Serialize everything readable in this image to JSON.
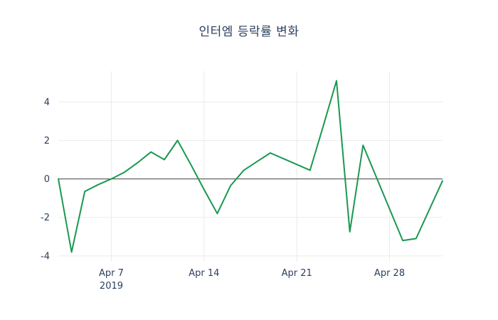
{
  "chart_data": {
    "type": "line",
    "title": "인터엠 등락률 변화",
    "xlabel": "",
    "ylabel": "",
    "series": [
      {
        "name": "등락률",
        "x": [
          "2019-04-03",
          "2019-04-04",
          "2019-04-05",
          "2019-04-06",
          "2019-04-07",
          "2019-04-08",
          "2019-04-09",
          "2019-04-10",
          "2019-04-11",
          "2019-04-12",
          "2019-04-13",
          "2019-04-14",
          "2019-04-15",
          "2019-04-16",
          "2019-04-17",
          "2019-04-18",
          "2019-04-19",
          "2019-04-20",
          "2019-04-21",
          "2019-04-22",
          "2019-04-23",
          "2019-04-24",
          "2019-04-25",
          "2019-04-26",
          "2019-04-27",
          "2019-04-28",
          "2019-04-29",
          "2019-04-30",
          "2019-05-01",
          "2019-05-02"
        ],
        "values": [
          0,
          -3.8,
          -0.65,
          -0.3,
          0,
          0.35,
          0.85,
          1.4,
          1.0,
          2.0,
          0.75,
          -0.55,
          -1.8,
          -0.35,
          0.45,
          0.9,
          1.35,
          1.05,
          0.75,
          0.45,
          2.75,
          5.1,
          -2.75,
          1.75,
          0.1,
          -1.55,
          -3.2,
          -3.1,
          -1.6,
          -0.1
        ]
      }
    ],
    "x_range": [
      "2019-04-03",
      "2019-05-02"
    ],
    "ylim": [
      -4.3,
      5.6
    ],
    "y_ticks": [
      -4,
      -2,
      0,
      2,
      4
    ],
    "x_ticks": [
      {
        "date": "2019-04-07",
        "label": "Apr 7",
        "sublabel": "2019"
      },
      {
        "date": "2019-04-14",
        "label": "Apr 14",
        "sublabel": ""
      },
      {
        "date": "2019-04-21",
        "label": "Apr 21",
        "sublabel": ""
      },
      {
        "date": "2019-04-28",
        "label": "Apr 28",
        "sublabel": ""
      }
    ],
    "grid": true,
    "zero_line": true,
    "legend_position": "none",
    "line_color": "#1a9850",
    "zero_line_color": "#444444",
    "tick_color": "#2a3f5f",
    "grid_color": "#ececec",
    "background": "#ffffff"
  }
}
